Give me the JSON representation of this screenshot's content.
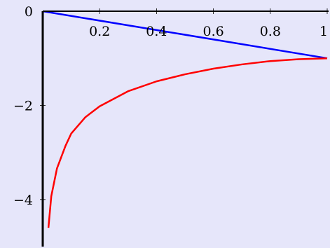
{
  "colors": {
    "background": "#e6e6fa",
    "axis": "#000000",
    "blue_series": "#0000ff",
    "red_series": "#ff0000"
  },
  "chart_data": {
    "type": "line",
    "xlim": [
      0,
      1
    ],
    "ylim": [
      -5,
      0
    ],
    "x_ticks": [
      0.2,
      0.4,
      0.6,
      0.8,
      1
    ],
    "x_tick_labels": [
      "0.2",
      "0.4",
      "0.6",
      "0.8",
      "1"
    ],
    "y_ticks": [
      0,
      -2,
      -4
    ],
    "y_tick_labels": [
      "0",
      "−2",
      "−4"
    ],
    "grid": false,
    "series": [
      {
        "color": "#0000ff",
        "x": [
          0,
          1
        ],
        "y": [
          0,
          -1
        ]
      },
      {
        "color": "#ff0000",
        "x": [
          0.02,
          0.03,
          0.05,
          0.08,
          0.1,
          0.15,
          0.2,
          0.3,
          0.4,
          0.5,
          0.6,
          0.7,
          0.8,
          0.9,
          1.0
        ],
        "y": [
          -4.6,
          -3.93,
          -3.34,
          -2.86,
          -2.6,
          -2.25,
          -2.02,
          -1.7,
          -1.49,
          -1.34,
          -1.22,
          -1.13,
          -1.06,
          -1.02,
          -1.0
        ]
      }
    ]
  }
}
